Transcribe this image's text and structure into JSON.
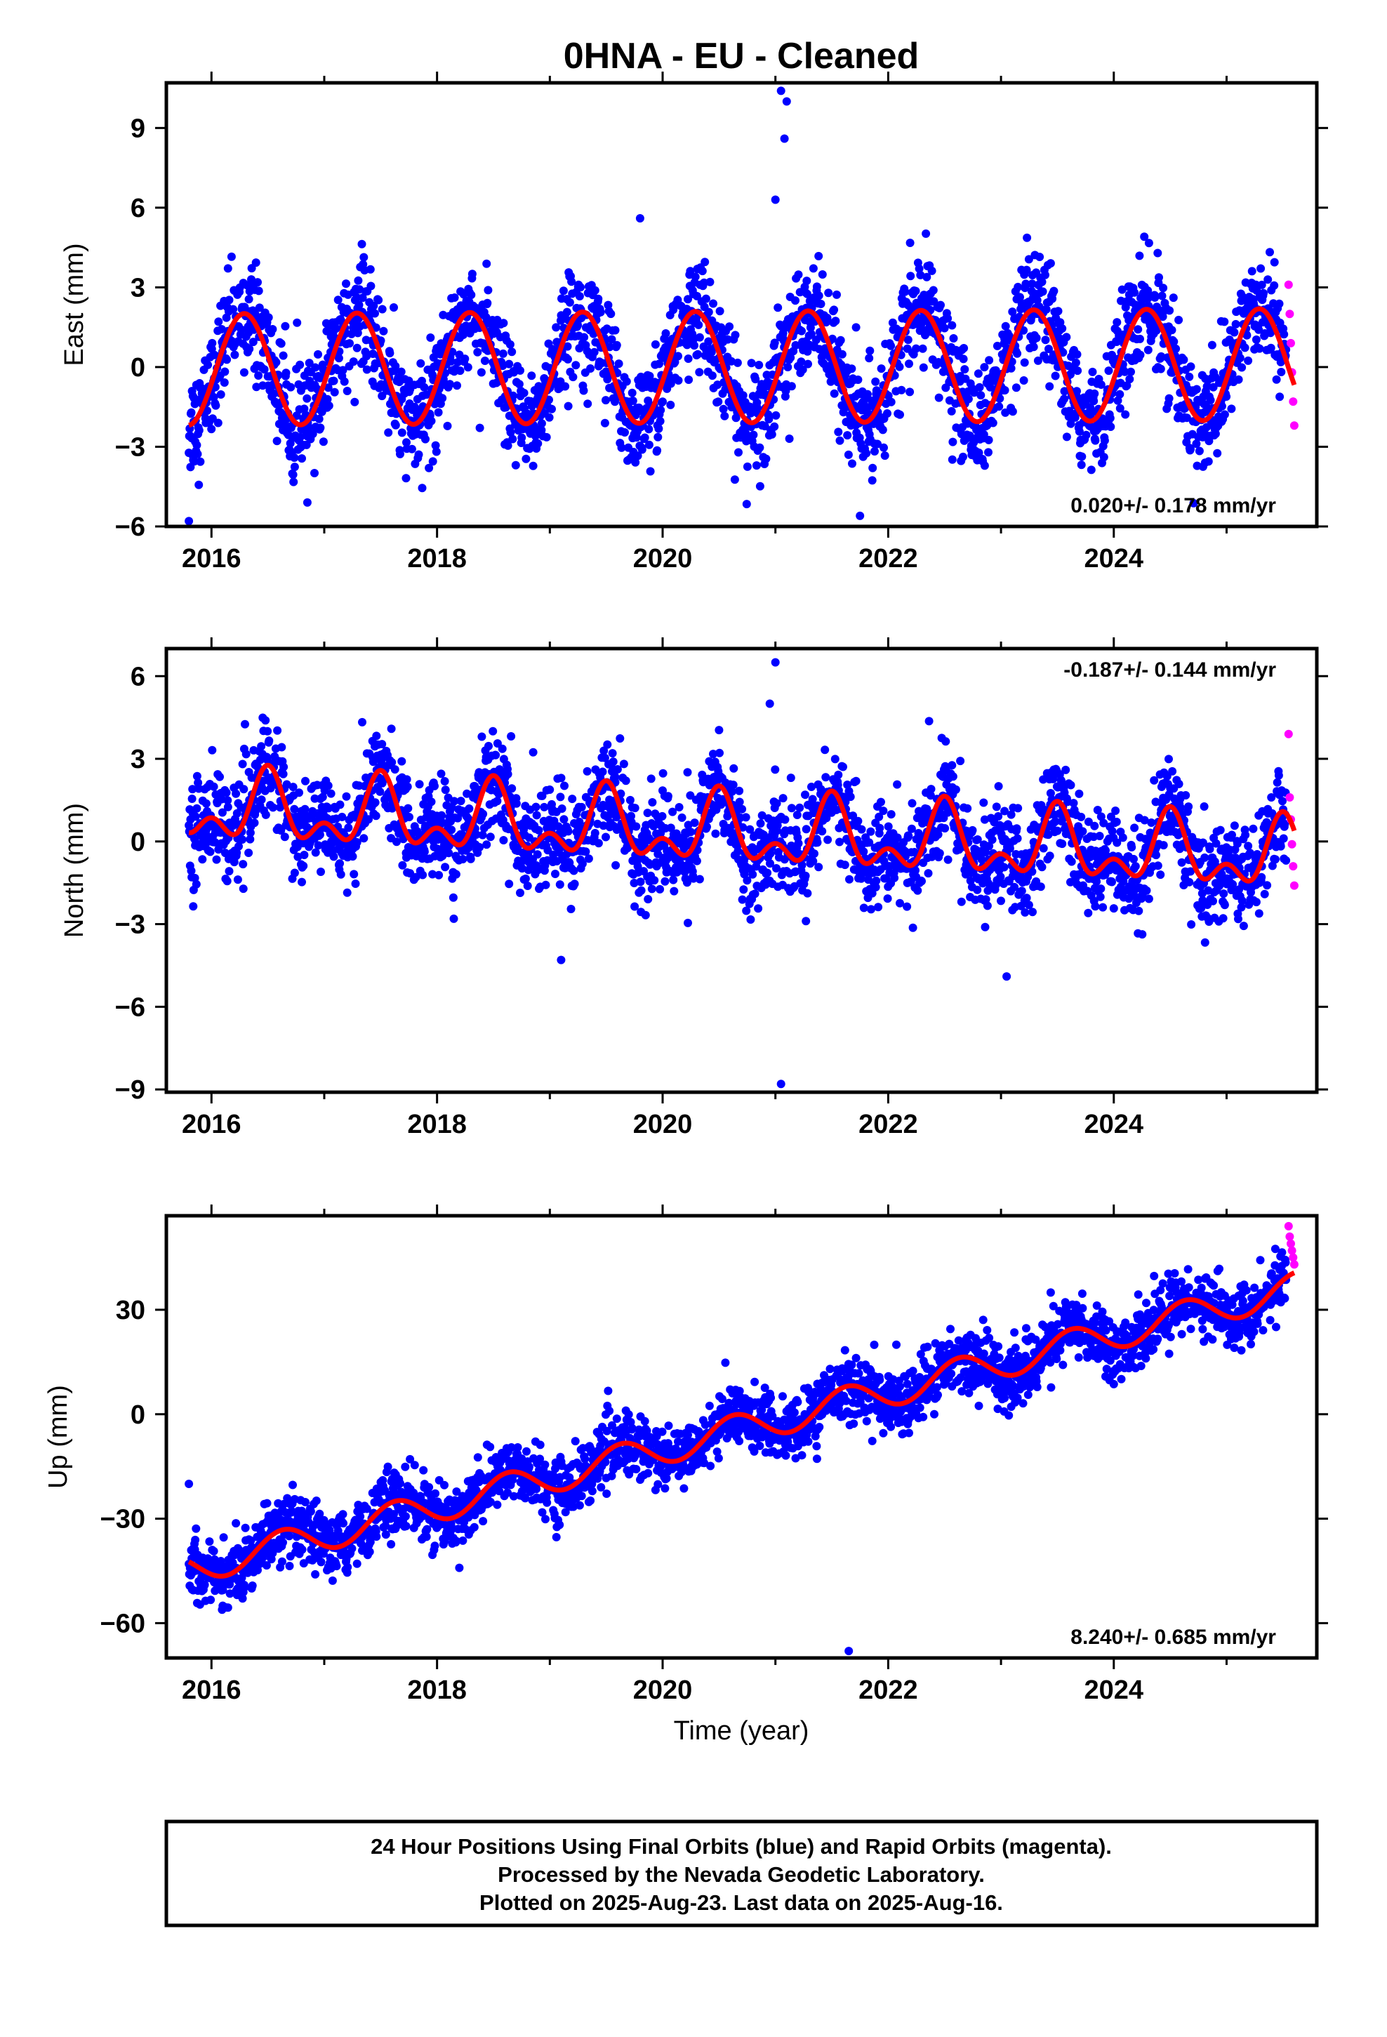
{
  "title": "0HNA  - EU - Cleaned",
  "x_axis_label": "Time (year)",
  "footer": {
    "lines": [
      "24 Hour Positions Using Final Orbits (blue) and Rapid Orbits (magenta).",
      "Processed by the Nevada Geodetic Laboratory.",
      "Plotted on 2025-Aug-23. Last data on 2025-Aug-16."
    ]
  },
  "colors": {
    "final_orbits": "#0000ff",
    "rapid_orbits": "#ff00ff",
    "model_fit": "#ff0000",
    "frame": "#000000"
  },
  "chart_data": [
    {
      "type": "scatter",
      "name": "east",
      "ylabel": "East (mm)",
      "xlim": [
        2015.6,
        2025.8
      ],
      "ylim": [
        -6,
        10.7
      ],
      "x_ticks": [
        2016,
        2018,
        2020,
        2022,
        2024
      ],
      "y_ticks": [
        -6,
        -3,
        0,
        3,
        6,
        9
      ],
      "rate_text": "0.020+/- 0.178 mm/yr",
      "rate_position": "bottom-right",
      "model": {
        "start": 2015.8,
        "end": 2025.6,
        "trend": 0.02,
        "intercept": 0,
        "annual_amp": 2.1,
        "annual_peak": 0.29,
        "semi_amp": 0,
        "semi_peak": 0
      },
      "scatter_noise": 1.0,
      "outliers": [
        [
          2021.05,
          10.4
        ],
        [
          2021.1,
          10.0
        ],
        [
          2021.08,
          8.6
        ],
        [
          2021.0,
          6.3
        ],
        [
          2019.8,
          5.6
        ],
        [
          2015.8,
          -5.8
        ],
        [
          2016.85,
          -5.1
        ],
        [
          2021.75,
          -5.6
        ]
      ],
      "rapid": {
        "x": [
          2025.55,
          2025.56,
          2025.57,
          2025.58,
          2025.59,
          2025.6
        ],
        "y": [
          3.1,
          2.0,
          0.9,
          -0.2,
          -1.3,
          -2.2
        ]
      }
    },
    {
      "type": "scatter",
      "name": "north",
      "ylabel": "North (mm)",
      "xlim": [
        2015.6,
        2025.8
      ],
      "ylim": [
        -9.1,
        7
      ],
      "x_ticks": [
        2016,
        2018,
        2020,
        2022,
        2024
      ],
      "y_ticks": [
        -9,
        -6,
        -3,
        0,
        3,
        6
      ],
      "rate_text": "-0.187+/- 0.144 mm/yr",
      "rate_position": "top-right",
      "model": {
        "start": 2015.8,
        "end": 2025.6,
        "trend": -0.187,
        "intercept": 0.3,
        "annual_amp": 1.0,
        "annual_peak": 0.5,
        "semi_amp": 0.7,
        "semi_peak": 0.5
      },
      "scatter_noise": 0.9,
      "outliers": [
        [
          2021.0,
          6.5
        ],
        [
          2020.95,
          5.0
        ],
        [
          2021.05,
          -8.8
        ],
        [
          2023.05,
          -4.9
        ],
        [
          2019.1,
          -4.3
        ]
      ],
      "rapid": {
        "x": [
          2025.55,
          2025.56,
          2025.57,
          2025.58,
          2025.59,
          2025.6
        ],
        "y": [
          3.9,
          1.6,
          0.8,
          -0.1,
          -0.9,
          -1.6
        ]
      }
    },
    {
      "type": "scatter",
      "name": "up",
      "ylabel": "Up (mm)",
      "xlim": [
        2015.6,
        2025.8
      ],
      "ylim": [
        -70,
        57
      ],
      "x_ticks": [
        2016,
        2018,
        2020,
        2022,
        2024
      ],
      "y_ticks": [
        -60,
        -30,
        0,
        30
      ],
      "rate_text": "8.240+/- 0.685 mm/yr",
      "rate_position": "bottom-right",
      "model": {
        "start": 2015.8,
        "end": 2025.6,
        "trend": 8.24,
        "intercept": -5.0,
        "annual_amp": 4.5,
        "annual_peak": 0.63,
        "semi_amp": 0,
        "semi_peak": 0
      },
      "scatter_noise": 4.5,
      "outliers": [
        [
          2021.65,
          -68
        ],
        [
          2015.8,
          -20
        ],
        [
          2016.1,
          -55
        ]
      ],
      "rapid": {
        "x": [
          2025.55,
          2025.56,
          2025.57,
          2025.58,
          2025.59,
          2025.6
        ],
        "y": [
          54,
          51,
          49,
          47,
          45,
          43
        ]
      }
    }
  ]
}
